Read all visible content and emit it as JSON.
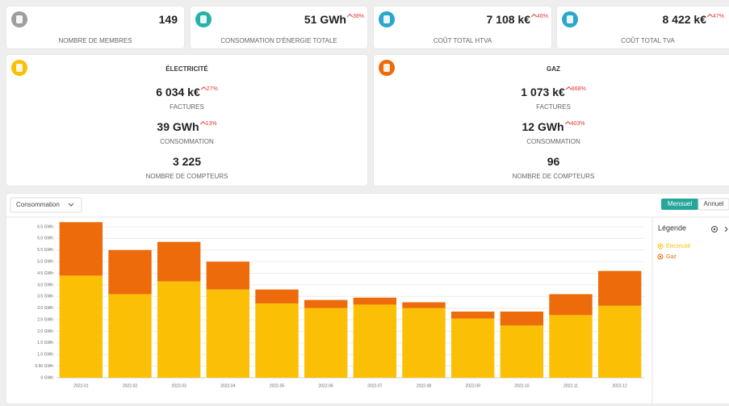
{
  "summary": [
    {
      "value": "149",
      "label": "NOMBRE DE MEMBRES"
    },
    {
      "value": "51 GWh",
      "change": "38%",
      "label": "CONSOMMATION D'ÉNERGIE TOTALE"
    },
    {
      "value": "7 108 k€",
      "change": "46%",
      "label": "COÛT TOTAL HTVA"
    },
    {
      "value": "8 422 k€",
      "change": "47%",
      "label": "COÛT TOTAL TVA"
    }
  ],
  "details": [
    {
      "title": "ÉLECTRICITÉ",
      "items": [
        {
          "value": "6 034 k€",
          "change": "27%",
          "label": "FACTURES"
        },
        {
          "value": "39 GWh",
          "change": "13%",
          "label": "CONSOMMATION"
        },
        {
          "value": "3 225",
          "label": "NOMBRE DE COMPTEURS"
        }
      ]
    },
    {
      "title": "GAZ",
      "items": [
        {
          "value": "1 073 k€",
          "change": "868%",
          "label": "FACTURES"
        },
        {
          "value": "12 GWh",
          "change": "403%",
          "label": "CONSOMMATION"
        },
        {
          "value": "96",
          "label": "NOMBRE DE COMPTEURS"
        }
      ]
    }
  ],
  "controls": {
    "metric": "Consommation",
    "periods": [
      "Mensuel",
      "Annuel"
    ]
  },
  "chart_data": {
    "type": "stacked_bar",
    "legend_title": "Légende",
    "categories": [
      "2022-01",
      "2022-02",
      "2022-03",
      "2022-04",
      "2022-05",
      "2022-06",
      "2022-07",
      "2022-08",
      "2022-09",
      "2022-10",
      "2022-11",
      "2022-12"
    ],
    "series": [
      {
        "name": "Électricité",
        "color": "#fbbf05",
        "values": [
          4.4,
          3.6,
          4.15,
          3.8,
          3.2,
          3.0,
          3.15,
          3.0,
          2.55,
          2.25,
          2.7,
          3.1
        ]
      },
      {
        "name": "Gaz",
        "color": "#ed6b0a",
        "values": [
          2.3,
          1.9,
          1.7,
          1.2,
          0.6,
          0.35,
          0.3,
          0.25,
          0.3,
          0.6,
          0.9,
          1.5
        ]
      }
    ],
    "ylim": [
      0,
      6.5
    ],
    "yticks": [
      {
        "value": 0,
        "label": "0 GWh"
      },
      {
        "value": 0.5,
        "label": "0.50 GWh"
      },
      {
        "value": 1,
        "label": "1.0 GWh"
      },
      {
        "value": 1.5,
        "label": "1.5 GWh"
      },
      {
        "value": 2,
        "label": "2.0 GWh"
      },
      {
        "value": 2.5,
        "label": "2.5 GWh"
      },
      {
        "value": 3,
        "label": "3.0 GWh"
      },
      {
        "value": 3.5,
        "label": "3.5 GWh"
      },
      {
        "value": 4,
        "label": "4.0 GWh"
      },
      {
        "value": 4.5,
        "label": "4.5 GWh"
      },
      {
        "value": 5,
        "label": "5.0 GWh"
      },
      {
        "value": 5.5,
        "label": "5.5 GWh"
      },
      {
        "value": 6,
        "label": "6.0 GWh"
      },
      {
        "value": 6.5,
        "label": "6.5 GWh"
      }
    ],
    "grid": true
  }
}
